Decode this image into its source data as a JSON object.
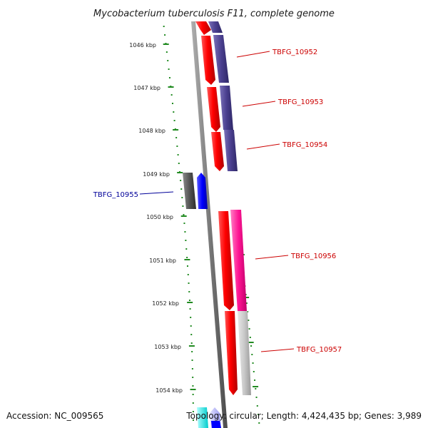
{
  "title": "Mycobacterium tuberculosis F11, complete genome",
  "accession": "Accession: NC_009565",
  "topology": "Topology: circular; Length: 4,424,435 bp; Genes: 3,989",
  "ticks": [
    "1046 kbp",
    "1047 kbp",
    "1048 kbp",
    "1049 kbp",
    "1050 kbp",
    "1051 kbp",
    "1052 kbp",
    "1053 kbp",
    "1054 kbp"
  ],
  "features": [
    {
      "id": "TBFG_10952",
      "color": "#cc0000"
    },
    {
      "id": "TBFG_10953",
      "color": "#cc0000"
    },
    {
      "id": "TBFG_10954",
      "color": "#cc0000"
    },
    {
      "id": "TBFG_10955",
      "color": "#000099"
    },
    {
      "id": "TBFG_10956",
      "color": "#cc0000"
    },
    {
      "id": "TBFG_10957",
      "color": "#cc0000"
    }
  ],
  "colors": {
    "cds": "#ff0000",
    "gene_forward": "#4a3f8f",
    "gene_other": "#555555",
    "gene_reverse": "#0000ff",
    "gene_pink": "#ff1493",
    "gene_grey": "#c8c8c8",
    "cyan": "#00ffff",
    "tick_green": "#228b22",
    "backbone": "#8a8a8a"
  }
}
